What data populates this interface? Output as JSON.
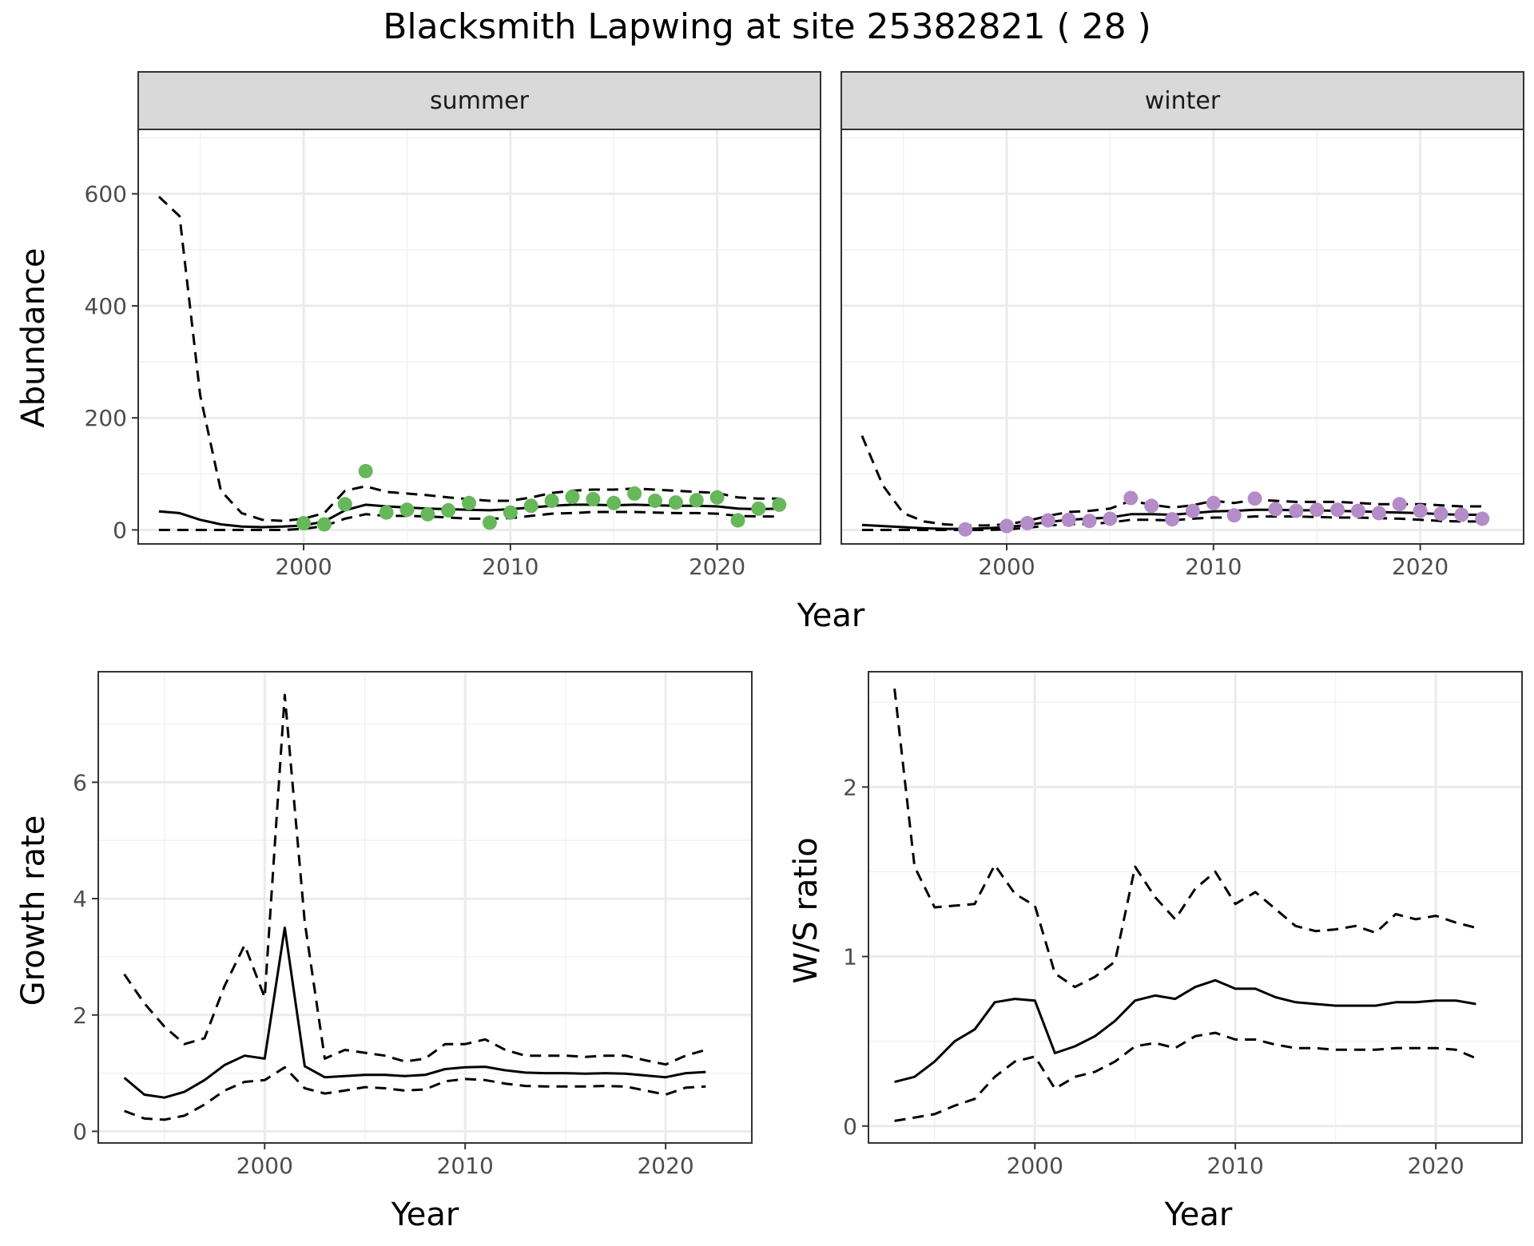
{
  "title": "Blacksmith Lapwing at site 25382821 ( 28 )",
  "colors": {
    "summer_points": "#66b85a",
    "winter_points": "#b38cc8",
    "lines": "#000000",
    "strip_fill": "#d9d9d9"
  },
  "chart_data": [
    {
      "type": "line",
      "panel": "summer",
      "strip_label": "summer",
      "xlabel": "Year",
      "ylabel": "Abundance",
      "xlim": [
        1992,
        2025
      ],
      "ylim": [
        -25,
        715
      ],
      "xticks": [
        2000,
        2010,
        2020
      ],
      "yticks": [
        0,
        200,
        400,
        600
      ],
      "grid": true,
      "x": [
        1993,
        1994,
        1995,
        1996,
        1997,
        1998,
        1999,
        2000,
        2001,
        2002,
        2003,
        2004,
        2005,
        2006,
        2007,
        2008,
        2009,
        2010,
        2011,
        2012,
        2013,
        2014,
        2015,
        2016,
        2017,
        2018,
        2019,
        2020,
        2021,
        2022,
        2023
      ],
      "series": [
        {
          "style": "solid",
          "values": [
            33,
            30,
            18,
            10,
            6,
            5,
            6,
            8,
            15,
            35,
            45,
            42,
            40,
            38,
            37,
            36,
            35,
            37,
            40,
            43,
            45,
            45,
            44,
            45,
            44,
            43,
            43,
            42,
            38,
            37,
            38
          ]
        },
        {
          "style": "dashed",
          "values": [
            595,
            560,
            240,
            70,
            30,
            18,
            16,
            20,
            30,
            70,
            78,
            68,
            65,
            62,
            58,
            55,
            52,
            52,
            58,
            66,
            70,
            72,
            72,
            74,
            72,
            70,
            68,
            66,
            58,
            56,
            56
          ]
        },
        {
          "style": "dashed",
          "values": [
            0,
            0,
            0,
            0,
            0,
            0,
            0,
            2,
            7,
            20,
            28,
            25,
            25,
            24,
            22,
            20,
            20,
            21,
            25,
            29,
            30,
            32,
            32,
            32,
            31,
            30,
            30,
            29,
            25,
            24,
            24
          ]
        }
      ],
      "points": {
        "x": [
          2000,
          2001,
          2002,
          2003,
          2004,
          2005,
          2006,
          2007,
          2008,
          2009,
          2010,
          2011,
          2012,
          2013,
          2014,
          2015,
          2016,
          2017,
          2018,
          2019,
          2020,
          2021,
          2022,
          2023
        ],
        "y": [
          12,
          10,
          46,
          105,
          31,
          36,
          28,
          35,
          48,
          13,
          31,
          43,
          52,
          59,
          55,
          48,
          65,
          52,
          49,
          53,
          58,
          17,
          38,
          45
        ]
      }
    },
    {
      "type": "line",
      "panel": "winter",
      "strip_label": "winter",
      "xlabel": "Year",
      "ylabel": "",
      "xlim": [
        1992,
        2025
      ],
      "ylim": [
        -25,
        715
      ],
      "xticks": [
        2000,
        2010,
        2020
      ],
      "yticks": [
        0,
        200,
        400,
        600
      ],
      "grid": true,
      "x": [
        1993,
        1994,
        1995,
        1996,
        1997,
        1998,
        1999,
        2000,
        2001,
        2002,
        2003,
        2004,
        2005,
        2006,
        2007,
        2008,
        2009,
        2010,
        2011,
        2012,
        2013,
        2014,
        2015,
        2016,
        2017,
        2018,
        2019,
        2020,
        2021,
        2022,
        2023
      ],
      "series": [
        {
          "style": "solid",
          "values": [
            9,
            7,
            5,
            3,
            2,
            2,
            3,
            5,
            9,
            14,
            18,
            20,
            22,
            28,
            28,
            27,
            30,
            33,
            34,
            36,
            36,
            35,
            35,
            34,
            33,
            32,
            31,
            30,
            28,
            27,
            27
          ]
        },
        {
          "style": "dashed",
          "values": [
            168,
            80,
            30,
            15,
            10,
            8,
            8,
            10,
            16,
            25,
            32,
            34,
            38,
            52,
            45,
            40,
            44,
            52,
            48,
            54,
            52,
            50,
            50,
            50,
            48,
            46,
            46,
            46,
            44,
            42,
            42
          ]
        },
        {
          "style": "dashed",
          "values": [
            0,
            0,
            0,
            0,
            0,
            0,
            0,
            1,
            4,
            8,
            10,
            11,
            13,
            18,
            18,
            17,
            20,
            22,
            22,
            24,
            24,
            24,
            23,
            22,
            22,
            21,
            20,
            18,
            16,
            15,
            15
          ]
        }
      ],
      "points": {
        "x": [
          1998,
          2000,
          2001,
          2002,
          2003,
          2004,
          2005,
          2006,
          2007,
          2008,
          2009,
          2010,
          2011,
          2012,
          2013,
          2014,
          2015,
          2016,
          2017,
          2018,
          2019,
          2020,
          2021,
          2022,
          2023
        ],
        "y": [
          1,
          7,
          12,
          17,
          18,
          16,
          20,
          57,
          43,
          19,
          34,
          48,
          26,
          56,
          37,
          34,
          36,
          36,
          34,
          30,
          46,
          34,
          29,
          27,
          20
        ]
      }
    },
    {
      "type": "line",
      "panel": "growth",
      "xlabel": "Year",
      "ylabel": "Growth rate",
      "xlim": [
        1991.7,
        2024.3
      ],
      "ylim": [
        -0.2,
        7.9
      ],
      "xticks": [
        2000,
        2010,
        2020
      ],
      "yticks": [
        0,
        2,
        4,
        6
      ],
      "grid": true,
      "x": [
        1993,
        1994,
        1995,
        1996,
        1997,
        1998,
        1999,
        2000,
        2001,
        2002,
        2003,
        2004,
        2005,
        2006,
        2007,
        2008,
        2009,
        2010,
        2011,
        2012,
        2013,
        2014,
        2015,
        2016,
        2017,
        2018,
        2019,
        2020,
        2021,
        2022
      ],
      "series": [
        {
          "style": "solid",
          "values": [
            0.92,
            0.63,
            0.58,
            0.68,
            0.88,
            1.14,
            1.3,
            1.25,
            3.5,
            1.12,
            0.93,
            0.95,
            0.97,
            0.97,
            0.95,
            0.97,
            1.07,
            1.1,
            1.11,
            1.05,
            1.01,
            1.0,
            1.0,
            0.99,
            1.0,
            0.99,
            0.96,
            0.93,
            1.0,
            1.02
          ]
        },
        {
          "style": "dashed",
          "values": [
            2.7,
            2.2,
            1.8,
            1.5,
            1.6,
            2.5,
            3.2,
            2.3,
            7.5,
            3.6,
            1.25,
            1.4,
            1.35,
            1.3,
            1.2,
            1.25,
            1.5,
            1.5,
            1.58,
            1.4,
            1.3,
            1.3,
            1.3,
            1.28,
            1.3,
            1.3,
            1.22,
            1.15,
            1.3,
            1.4
          ]
        },
        {
          "style": "dashed",
          "values": [
            0.35,
            0.22,
            0.2,
            0.27,
            0.46,
            0.7,
            0.85,
            0.88,
            1.1,
            0.74,
            0.65,
            0.7,
            0.76,
            0.74,
            0.7,
            0.72,
            0.86,
            0.9,
            0.88,
            0.82,
            0.78,
            0.77,
            0.77,
            0.77,
            0.78,
            0.77,
            0.7,
            0.63,
            0.75,
            0.77
          ]
        }
      ]
    },
    {
      "type": "line",
      "panel": "ratio",
      "xlabel": "Year",
      "ylabel": "W/S ratio",
      "xlim": [
        1991.7,
        2024.3
      ],
      "ylim": [
        -0.1,
        2.68
      ],
      "xticks": [
        2000,
        2010,
        2020
      ],
      "yticks": [
        0,
        1,
        2
      ],
      "grid": true,
      "x": [
        1993,
        1994,
        1995,
        1996,
        1997,
        1998,
        1999,
        2000,
        2001,
        2002,
        2003,
        2004,
        2005,
        2006,
        2007,
        2008,
        2009,
        2010,
        2011,
        2012,
        2013,
        2014,
        2015,
        2016,
        2017,
        2018,
        2019,
        2020,
        2021,
        2022
      ],
      "series": [
        {
          "style": "solid",
          "values": [
            0.26,
            0.29,
            0.38,
            0.5,
            0.57,
            0.73,
            0.75,
            0.74,
            0.43,
            0.47,
            0.53,
            0.62,
            0.74,
            0.77,
            0.75,
            0.82,
            0.86,
            0.81,
            0.81,
            0.76,
            0.73,
            0.72,
            0.71,
            0.71,
            0.71,
            0.73,
            0.73,
            0.74,
            0.74,
            0.72
          ]
        },
        {
          "style": "dashed",
          "values": [
            2.58,
            1.53,
            1.29,
            1.3,
            1.31,
            1.54,
            1.37,
            1.3,
            0.9,
            0.82,
            0.88,
            0.97,
            1.53,
            1.35,
            1.22,
            1.4,
            1.5,
            1.31,
            1.38,
            1.28,
            1.18,
            1.15,
            1.16,
            1.18,
            1.14,
            1.25,
            1.22,
            1.24,
            1.2,
            1.17
          ]
        },
        {
          "style": "dashed",
          "values": [
            0.03,
            0.05,
            0.07,
            0.12,
            0.16,
            0.29,
            0.38,
            0.41,
            0.22,
            0.29,
            0.32,
            0.38,
            0.47,
            0.49,
            0.46,
            0.53,
            0.55,
            0.51,
            0.51,
            0.48,
            0.46,
            0.46,
            0.45,
            0.45,
            0.45,
            0.46,
            0.46,
            0.46,
            0.45,
            0.4
          ]
        }
      ]
    }
  ]
}
